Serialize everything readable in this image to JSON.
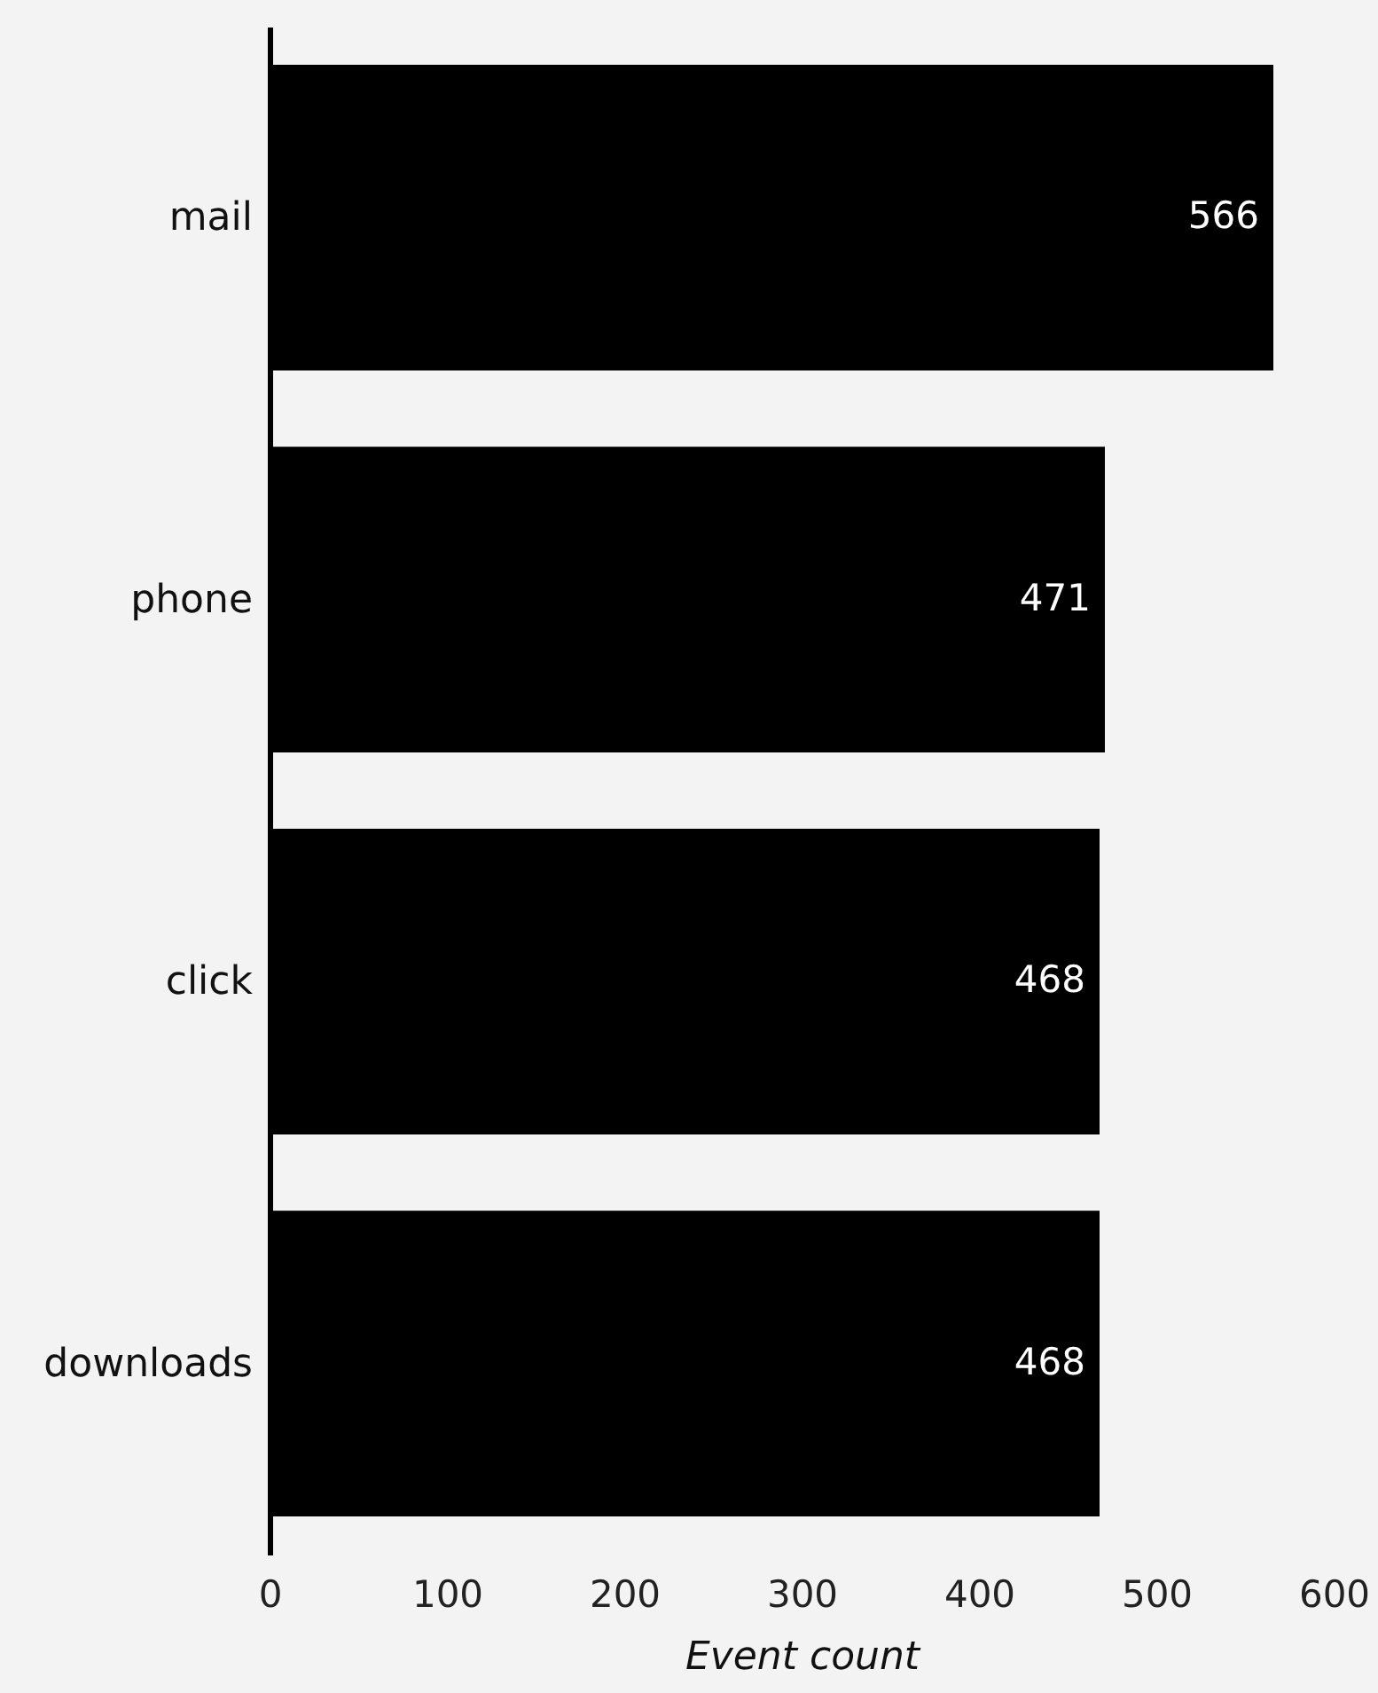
{
  "chart_data": {
    "type": "bar",
    "orientation": "horizontal",
    "categories": [
      "mail",
      "phone",
      "click",
      "downloads"
    ],
    "values": [
      566,
      471,
      468,
      468
    ],
    "color": "#000000",
    "xlim": [
      0,
      600
    ],
    "xticks": [
      0,
      100,
      200,
      300,
      400,
      500,
      600
    ],
    "xlabel": "Event count",
    "data_labels": true,
    "grid": false
  }
}
